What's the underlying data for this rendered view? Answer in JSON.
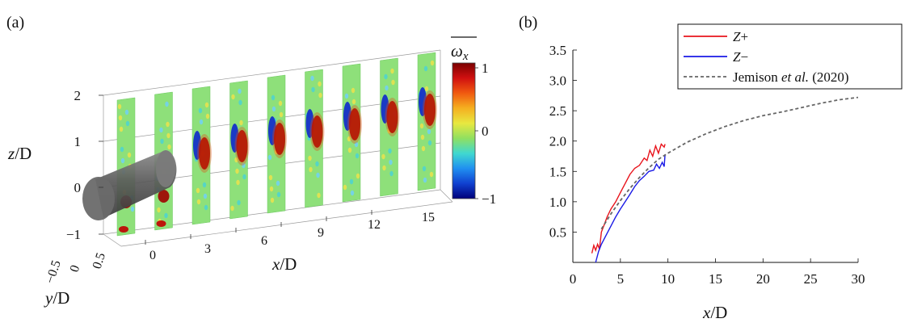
{
  "panel_a": {
    "label": "(a)",
    "z_axis": {
      "label_var": "z",
      "label_rest": "/D",
      "ticks": [
        "2",
        "1",
        "0",
        "−1"
      ]
    },
    "y_axis": {
      "label_var": "y",
      "label_rest": "/D",
      "ticks": [
        "−0.5",
        "0",
        "0.5"
      ]
    },
    "x_axis": {
      "label_var": "x",
      "label_rest": "/D",
      "ticks": [
        "0",
        "3",
        "6",
        "9",
        "12",
        "15"
      ]
    },
    "colorbar": {
      "title_sym": "ω",
      "title_sub": "x",
      "ticks": [
        "1",
        "0",
        "−1"
      ],
      "colors": [
        "#7a0000",
        "#d01010",
        "#f05a10",
        "#f5b020",
        "#e8e840",
        "#90e060",
        "#40d8d0",
        "#2090f0",
        "#1040d0",
        "#00007a"
      ]
    },
    "slice_count": 9
  },
  "chart_data": {
    "type": "line",
    "panel_label": "(b)",
    "xlabel_var": "x",
    "xlabel_rest": "/D",
    "ylabel": "",
    "xlim": [
      0,
      30
    ],
    "ylim": [
      0,
      3.5
    ],
    "xticks": [
      "0",
      "5",
      "10",
      "15",
      "20",
      "25",
      "30"
    ],
    "yticks": [
      "0.5",
      "1.0",
      "1.5",
      "2.0",
      "2.5",
      "3.0",
      "3.5"
    ],
    "legend_position": "top-right",
    "series": [
      {
        "name_var": "Z",
        "name_rest": "+",
        "color": "#e8141c",
        "dash": "",
        "x": [
          2.0,
          2.2,
          2.4,
          2.6,
          2.8,
          3.0,
          3.3,
          3.6,
          4.0,
          4.5,
          5.0,
          5.5,
          6.0,
          6.5,
          7.0,
          7.5,
          7.8,
          8.1,
          8.4,
          8.7,
          9.0,
          9.3,
          9.6,
          9.7
        ],
        "y": [
          0.15,
          0.28,
          0.2,
          0.3,
          0.22,
          0.5,
          0.62,
          0.75,
          0.88,
          1.0,
          1.15,
          1.3,
          1.45,
          1.55,
          1.6,
          1.72,
          1.68,
          1.85,
          1.75,
          1.92,
          1.8,
          1.95,
          1.9,
          1.95
        ]
      },
      {
        "name_var": "Z",
        "name_rest": "−",
        "color": "#1a1ae6",
        "dash": "",
        "x": [
          2.4,
          2.7,
          3.0,
          3.5,
          4.0,
          4.5,
          5.0,
          5.5,
          6.0,
          6.5,
          7.0,
          7.5,
          8.0,
          8.5,
          8.8,
          9.1,
          9.4,
          9.6,
          9.7
        ],
        "y": [
          0.0,
          0.18,
          0.3,
          0.45,
          0.6,
          0.75,
          0.88,
          1.0,
          1.12,
          1.25,
          1.35,
          1.42,
          1.5,
          1.52,
          1.62,
          1.55,
          1.65,
          1.58,
          1.78
        ]
      },
      {
        "name_var": "",
        "name_rest": "Jemison et al. (2020)",
        "color": "#666666",
        "dash": "4,3",
        "x": [
          3.0,
          4.0,
          5.0,
          6.0,
          7.0,
          8.0,
          9.0,
          10.0,
          12.0,
          14.0,
          16.0,
          18.0,
          20.0,
          22.0,
          24.0,
          26.0,
          28.0,
          30.0
        ],
        "y": [
          0.55,
          0.8,
          1.02,
          1.22,
          1.4,
          1.56,
          1.7,
          1.8,
          1.98,
          2.12,
          2.24,
          2.34,
          2.42,
          2.48,
          2.55,
          2.62,
          2.68,
          2.72
        ]
      }
    ]
  }
}
